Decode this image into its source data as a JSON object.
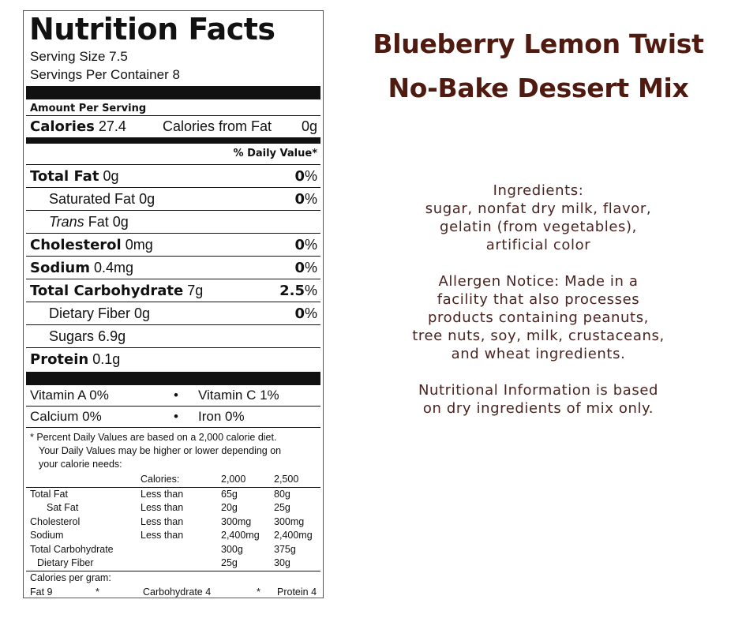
{
  "label": {
    "title": "Nutrition Facts",
    "serving_size": "Serving Size 7.5",
    "servings_per_container": "Servings Per Container 8",
    "amount_per_serving": "Amount Per Serving",
    "calories_label": "Calories",
    "calories_value": "27.4",
    "calories_from_fat_label": "Calories from Fat",
    "calories_from_fat_value": "0g",
    "daily_value_header": "% Daily Value*",
    "nutrients": [
      {
        "name": "Total Fat",
        "amount": "0g",
        "dv": "0",
        "bold": true
      },
      {
        "name": "Saturated Fat",
        "amount": "0g",
        "dv": "0",
        "bold": false
      },
      {
        "name": "Trans",
        "suffix": "Fat",
        "amount": "0g",
        "dv": "",
        "bold": false
      },
      {
        "name": "Cholesterol",
        "amount": "0mg",
        "dv": "0",
        "bold": true
      },
      {
        "name": "Sodium",
        "amount": "0.4mg",
        "dv": "0",
        "bold": true
      },
      {
        "name": "Total Carbohydrate",
        "amount": "7g",
        "dv": "2.5",
        "bold": true
      },
      {
        "name": "Dietary Fiber",
        "amount": "0g",
        "dv": "0",
        "bold": false
      },
      {
        "name": "Sugars",
        "amount": "6.9g",
        "dv": "",
        "bold": false
      },
      {
        "name": "Protein",
        "amount": "0.1g",
        "dv": "",
        "bold": true
      }
    ],
    "percent_sign": "%",
    "vitamins": [
      {
        "left": "Vitamin A 0%",
        "right": "Vitamin C 1%"
      },
      {
        "left": "Calcium 0%",
        "right": "Iron 0%"
      }
    ],
    "bullet": "•",
    "footnote_line1": "* Percent Daily Values are based on a 2,000 calorie diet.",
    "footnote_line2": "Your Daily Values may be higher or lower depending on",
    "footnote_line3": "your calorie needs:",
    "reference_table": {
      "header": [
        "",
        "Calories:",
        "2,000",
        "2,500"
      ],
      "rows": [
        [
          "Total Fat",
          "Less than",
          "65g",
          "80g"
        ],
        [
          "Sat Fat",
          "Less than",
          "20g",
          "25g"
        ],
        [
          "Cholesterol",
          "Less than",
          "300mg",
          "300mg"
        ],
        [
          "Sodium",
          "Less than",
          "2,400mg",
          "2,400mg"
        ],
        [
          "Total Carbohydrate",
          "",
          "300g",
          "375g"
        ],
        [
          "Dietary Fiber",
          "",
          "25g",
          "30g"
        ]
      ]
    },
    "calories_per_gram_label": "Calories per gram:",
    "calories_per_gram": {
      "fat": "Fat 9",
      "star1": "*",
      "carb": "Carbohydrate 4",
      "star2": "*",
      "protein": "Protein 4"
    }
  },
  "product": {
    "title_line1": "Blueberry Lemon Twist",
    "title_line2": "No-Bake Dessert Mix"
  },
  "info": {
    "ingredients_heading": "Ingredients:",
    "ingredients_lines": [
      "sugar, nonfat dry milk, flavor,",
      "gelatin (from vegetables),",
      "artificial color"
    ],
    "allergen_lines": [
      "Allergen Notice: Made in a",
      "facility that also processes",
      "products containing peanuts,",
      "tree nuts, soy, milk, crustaceans,",
      "and wheat ingredients."
    ],
    "nutrition_note_lines": [
      "Nutritional Information is based",
      "on dry ingredients of mix only."
    ]
  },
  "colors": {
    "title": "#4f1a10",
    "body_text": "#4a2420",
    "label_ink": "#111111"
  }
}
